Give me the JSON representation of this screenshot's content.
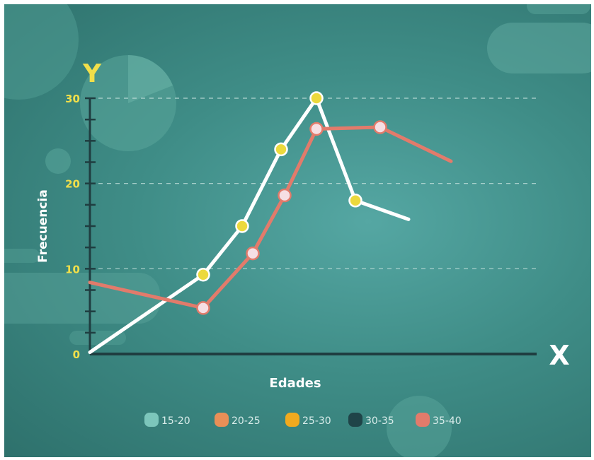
{
  "chart_data": {
    "type": "line",
    "x_axis_letter": "X",
    "y_axis_letter": "Y",
    "xlabel": "Edades",
    "ylabel": "Frecuencia",
    "ylim": [
      0,
      30
    ],
    "yticks": [
      "0",
      "10",
      "20",
      "30"
    ],
    "grid": "dashed horizontal at 10, 20, 30",
    "legend": [
      "15-20",
      "20-25",
      "25-30",
      "30-35",
      "35-40"
    ],
    "legend_colors": [
      "#7cc6bb",
      "#e98f57",
      "#f0aa1e",
      "#1f4448",
      "#e27b6b"
    ],
    "legend_placement": "bottom-center",
    "series": [
      {
        "color": "#ffffff",
        "marker_color": "#ecd93d",
        "points": [
          {
            "x": 0.0,
            "y": 0.2,
            "marker": false
          },
          {
            "x": 1.6,
            "y": 9.3,
            "marker": true
          },
          {
            "x": 2.15,
            "y": 15.0,
            "marker": true
          },
          {
            "x": 2.7,
            "y": 24.0,
            "marker": true
          },
          {
            "x": 3.2,
            "y": 30.0,
            "marker": true
          },
          {
            "x": 3.75,
            "y": 18.0,
            "marker": true
          },
          {
            "x": 4.5,
            "y": 15.8,
            "marker": false
          }
        ]
      },
      {
        "color": "#e27b6b",
        "marker_color": "#f6dfe4",
        "points": [
          {
            "x": 0.0,
            "y": 8.4,
            "marker": false
          },
          {
            "x": 1.6,
            "y": 5.4,
            "marker": true
          },
          {
            "x": 2.3,
            "y": 11.8,
            "marker": true
          },
          {
            "x": 2.75,
            "y": 18.6,
            "marker": true
          },
          {
            "x": 3.2,
            "y": 26.4,
            "marker": true
          },
          {
            "x": 4.1,
            "y": 26.6,
            "marker": true
          },
          {
            "x": 5.1,
            "y": 22.6,
            "marker": false
          }
        ]
      }
    ]
  }
}
